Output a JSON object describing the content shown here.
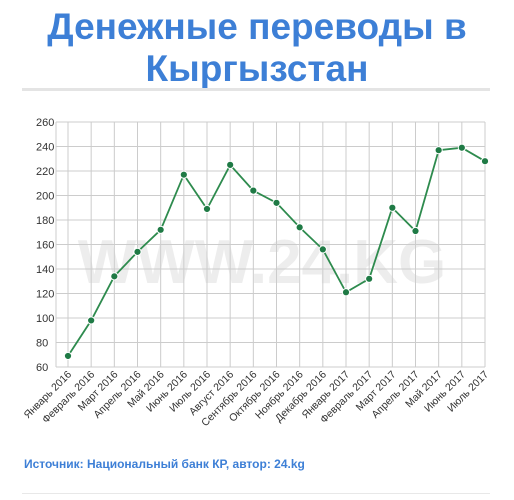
{
  "header": {
    "title_line1": "Денежные переводы в",
    "title_line2": "Кыргызстан"
  },
  "footer": {
    "source": "Источник: Национальный банк КР, автор: 24.kg"
  },
  "watermark": {
    "text": "WWW.24.KG"
  },
  "colors": {
    "title": "#3d7fd6",
    "line": "#2e8b4e",
    "marker": "#1f7a45",
    "grid": "#cccccc"
  },
  "chart_data": {
    "type": "line",
    "title": "",
    "xlabel": "",
    "ylabel": "",
    "ylim": [
      60,
      260
    ],
    "yticks": [
      60,
      80,
      100,
      120,
      140,
      160,
      180,
      200,
      220,
      240,
      260
    ],
    "grid": true,
    "categories": [
      "Январь 2016",
      "Февраль 2016",
      "Март 2016",
      "Апрель 2016",
      "Май 2016",
      "Июнь 2016",
      "Июль 2016",
      "Август 2016",
      "Сентябрь 2016",
      "Октябрь 2016",
      "Ноябрь 2016",
      "Декабрь 2016",
      "Январь 2017",
      "Февраль 2017",
      "Март 2017",
      "Апрель 2017",
      "Май 2017",
      "Июнь 2017",
      "Июль 2017"
    ],
    "series": [
      {
        "values": [
          69,
          98,
          134,
          154,
          172,
          217,
          189,
          225,
          204,
          194,
          174,
          156,
          121,
          132,
          190,
          171,
          237,
          239,
          228
        ]
      }
    ]
  }
}
